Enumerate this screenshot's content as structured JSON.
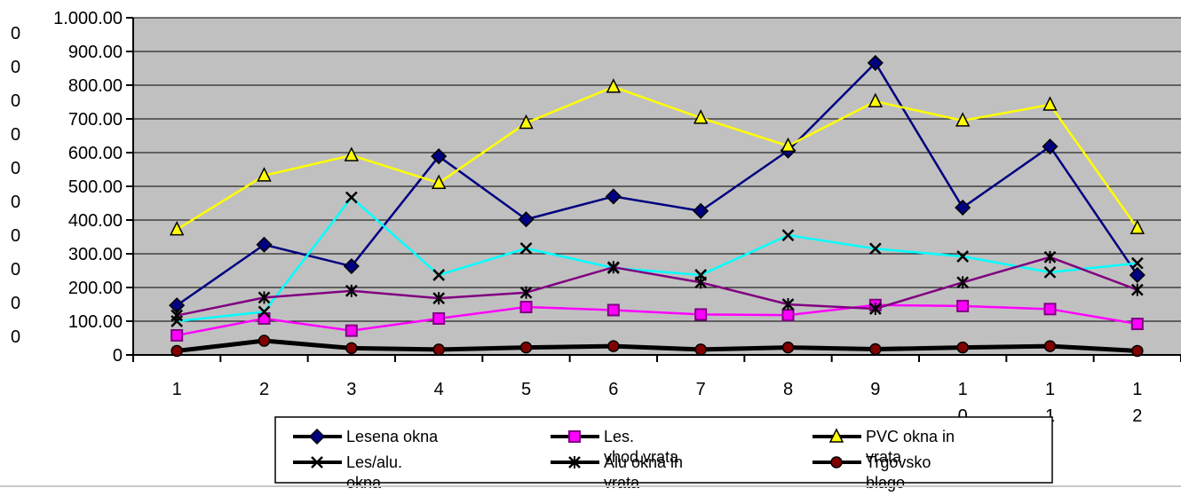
{
  "chart_data": {
    "type": "line",
    "categories": [
      "1",
      "2",
      "3",
      "4",
      "5",
      "6",
      "7",
      "8",
      "9",
      "10",
      "11",
      "12"
    ],
    "ylim": [
      0,
      1000
    ],
    "yticks": [
      0,
      100,
      200,
      300,
      400,
      500,
      600,
      700,
      800,
      900,
      1000
    ],
    "ytick_labels": [
      "0",
      "100.00\n0",
      "200.00\n0",
      "300.00\n0",
      "400.00\n0",
      "500.00\n0",
      "600.00\n0",
      "700.00\n0",
      "800.00\n0",
      "900.00\n0",
      "1.000.00\n0"
    ],
    "xtick_labels": [
      "1",
      "2",
      "3",
      "4",
      "5",
      "6",
      "7",
      "8",
      "9",
      "1\n0",
      "1\n1",
      "1\n2"
    ],
    "grid": true,
    "plot_background": "#c0c0c0",
    "legend_position": "bottom",
    "series": [
      {
        "name": "Lesena okna",
        "marker": "diamond",
        "color": "#000080",
        "marker_fill": "#000080",
        "values": [
          147,
          327,
          263,
          589,
          402,
          470,
          427,
          606,
          866,
          437,
          618,
          237
        ]
      },
      {
        "name": "Les. vhod.vrata",
        "marker": "square",
        "color": "#ff00ff",
        "marker_fill": "#ff00ff",
        "values": [
          58,
          108,
          72,
          108,
          142,
          133,
          120,
          118,
          148,
          145,
          136,
          92
        ]
      },
      {
        "name": "PVC okna in vrata",
        "marker": "triangle",
        "color": "#ffff00",
        "marker_fill": "#ffff00",
        "values": [
          372,
          532,
          592,
          510,
          688,
          795,
          703,
          620,
          752,
          695,
          742,
          376
        ]
      },
      {
        "name": "Les/alu. okna",
        "marker": "x",
        "color": "#00ffff",
        "marker_fill": "#000000",
        "values": [
          100,
          128,
          467,
          237,
          316,
          258,
          237,
          355,
          315,
          292,
          245,
          272
        ]
      },
      {
        "name": "Alu okna in vrata",
        "marker": "star",
        "color": "#800080",
        "marker_fill": "#000000",
        "values": [
          117,
          170,
          190,
          168,
          185,
          260,
          215,
          150,
          137,
          215,
          290,
          193
        ]
      },
      {
        "name": "Trgovsko blago",
        "marker": "circle",
        "color": "#000000",
        "marker_fill": "#800000",
        "values": [
          12,
          42,
          20,
          16,
          22,
          26,
          16,
          22,
          17,
          22,
          26,
          12
        ]
      }
    ]
  }
}
